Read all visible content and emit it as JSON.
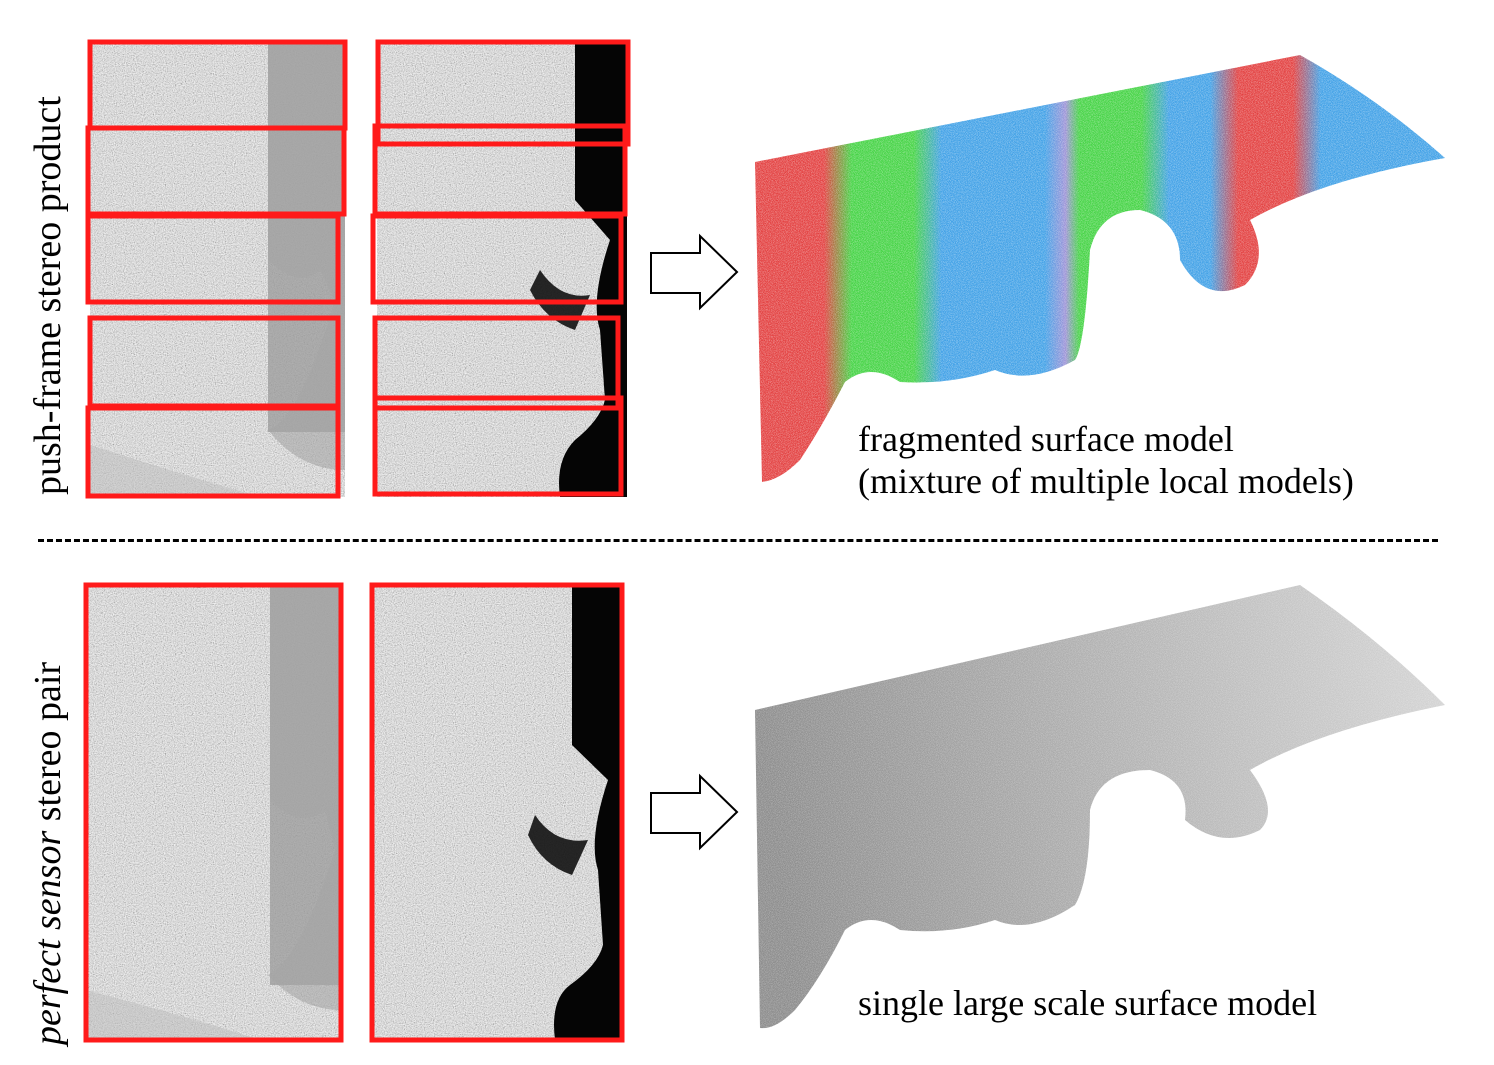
{
  "top_row": {
    "side_label": "push-frame stereo product",
    "caption_line1": "fragmented surface model",
    "caption_line2": "(mixture of multiple local models)",
    "band_colors": [
      "#e23a3a",
      "#3fd23f",
      "#3b9ee6"
    ]
  },
  "bottom_row": {
    "side_label_italic": "perfect sensor",
    "side_label_rest": "stereo pair",
    "caption": "single large scale surface model"
  },
  "frame_color": "#ff1a1a"
}
